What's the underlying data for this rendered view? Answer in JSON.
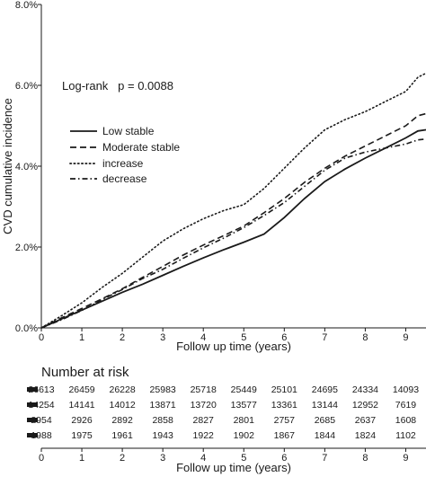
{
  "chart_data": [
    {
      "type": "line",
      "chart_kind": "Kaplan-Meier cumulative incidence",
      "annotation": "Log-rank   p = 0.0088",
      "xlabel": "Follow up time (years)",
      "ylabel": "CVD cumulative incidence",
      "xlim": [
        0,
        9.5
      ],
      "ylim": [
        0,
        8
      ],
      "x_ticks": [
        "0",
        "1",
        "2",
        "3",
        "4",
        "5",
        "6",
        "7",
        "8",
        "9"
      ],
      "y_ticks": [
        "0.0%",
        "2.0%",
        "4.0%",
        "6.0%",
        "8.0%"
      ],
      "y_tick_values": [
        0,
        2,
        4,
        6,
        8
      ],
      "y_unit": "%",
      "grid": false,
      "legend_position": "middle-left",
      "series": [
        {
          "name": "Low stable",
          "style": "solid",
          "x": [
            0,
            0.5,
            1,
            1.5,
            2,
            2.5,
            3,
            3.5,
            4,
            4.5,
            5,
            5.5,
            6,
            6.5,
            7,
            7.5,
            8,
            8.5,
            9,
            9.3,
            9.5
          ],
          "y": [
            0,
            0.22,
            0.44,
            0.66,
            0.88,
            1.08,
            1.3,
            1.52,
            1.73,
            1.93,
            2.12,
            2.32,
            2.73,
            3.2,
            3.62,
            3.93,
            4.2,
            4.45,
            4.7,
            4.87,
            4.9
          ]
        },
        {
          "name": "Moderate stable",
          "style": "dashed",
          "x": [
            0,
            0.5,
            1,
            1.5,
            2,
            2.5,
            3,
            3.5,
            4,
            4.5,
            5,
            5.5,
            6,
            6.5,
            7,
            7.5,
            8,
            8.5,
            9,
            9.3,
            9.5
          ],
          "y": [
            0,
            0.25,
            0.48,
            0.72,
            0.97,
            1.25,
            1.52,
            1.8,
            2.05,
            2.28,
            2.52,
            2.85,
            3.2,
            3.6,
            3.95,
            4.25,
            4.5,
            4.75,
            5.0,
            5.25,
            5.3
          ]
        },
        {
          "name": "increase",
          "style": "dotted",
          "x": [
            0,
            0.5,
            1,
            1.5,
            2,
            2.5,
            3,
            3.5,
            4,
            4.5,
            5,
            5.5,
            6,
            6.5,
            7,
            7.5,
            8,
            8.5,
            9,
            9.3,
            9.5
          ],
          "y": [
            0,
            0.3,
            0.62,
            1.0,
            1.35,
            1.75,
            2.15,
            2.45,
            2.7,
            2.9,
            3.05,
            3.45,
            3.95,
            4.45,
            4.9,
            5.15,
            5.35,
            5.6,
            5.85,
            6.2,
            6.3
          ]
        },
        {
          "name": "decrease",
          "style": "dashdot",
          "x": [
            0,
            0.5,
            1,
            1.5,
            2,
            2.5,
            3,
            3.5,
            4,
            4.5,
            5,
            5.5,
            6,
            6.5,
            7,
            7.5,
            8,
            8.5,
            9,
            9.3,
            9.5
          ],
          "y": [
            0,
            0.2,
            0.43,
            0.7,
            0.95,
            1.22,
            1.45,
            1.72,
            1.98,
            2.22,
            2.48,
            2.78,
            3.1,
            3.5,
            3.9,
            4.2,
            4.35,
            4.45,
            4.55,
            4.65,
            4.67
          ]
        }
      ]
    },
    {
      "type": "table",
      "title": "Number at risk",
      "xlabel": "Follow up time (years)",
      "x_ticks": [
        "0",
        "1",
        "2",
        "3",
        "4",
        "5",
        "6",
        "7",
        "8",
        "9"
      ],
      "rows": [
        {
          "values": [
            "26613",
            "26459",
            "26228",
            "25983",
            "25718",
            "25449",
            "25101",
            "24695",
            "24334",
            "14093"
          ]
        },
        {
          "values": [
            "14254",
            "14141",
            "14012",
            "13871",
            "13720",
            "13577",
            "13361",
            "13144",
            "12952",
            "7619"
          ]
        },
        {
          "values": [
            "2954",
            "2926",
            "2892",
            "2858",
            "2827",
            "2801",
            "2757",
            "2685",
            "2637",
            "1608"
          ]
        },
        {
          "values": [
            "1988",
            "1975",
            "1961",
            "1943",
            "1922",
            "1902",
            "1867",
            "1844",
            "1824",
            "1102"
          ]
        }
      ]
    }
  ]
}
